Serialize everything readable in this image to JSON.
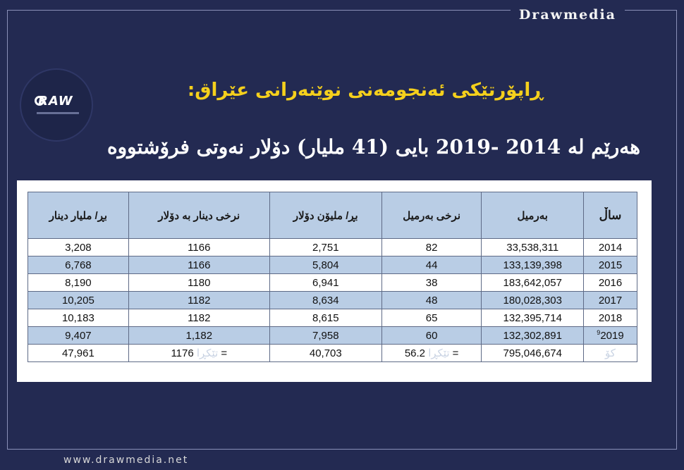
{
  "brand": {
    "top": "Drawmedia",
    "bottom": "www.drawmedia.net",
    "logo_text": "RAW"
  },
  "title": {
    "line1": "ڕاپۆرتێکی ئەنجومەنی نوێنەرانی عێراق:",
    "line2": "هەرێم لە 2014 -2019 بایی (41 ملیار) دۆلار نەوتی فرۆشتووە"
  },
  "table": {
    "headers": {
      "year": "ساڵ",
      "barrels": "بەرمیل",
      "barrel_price": "نرخی بەرمیل",
      "million_dollars": "بڕ/ ملیۆن دۆلار",
      "exchange_rate": "نرخی دینار بە دۆلار",
      "billion_dinars": "بڕ/ ملیار دینار"
    },
    "rows": [
      {
        "year": "2014",
        "sup": "",
        "barrels": "33,538,311",
        "barrel_price": "82",
        "million_dollars": "2,751",
        "exchange_rate": "1166",
        "billion_dinars": "3,208"
      },
      {
        "year": "2015",
        "sup": "",
        "barrels": "133,139,398",
        "barrel_price": "44",
        "million_dollars": "5,804",
        "exchange_rate": "1166",
        "billion_dinars": "6,768"
      },
      {
        "year": "2016",
        "sup": "",
        "barrels": "183,642,057",
        "barrel_price": "38",
        "million_dollars": "6,941",
        "exchange_rate": "1180",
        "billion_dinars": "8,190"
      },
      {
        "year": "2017",
        "sup": "",
        "barrels": "180,028,303",
        "barrel_price": "48",
        "million_dollars": "8,634",
        "exchange_rate": "1182",
        "billion_dinars": "10,205"
      },
      {
        "year": "2018",
        "sup": "",
        "barrels": "132,395,714",
        "barrel_price": "65",
        "million_dollars": "8,615",
        "exchange_rate": "1182",
        "billion_dinars": "10,183"
      },
      {
        "year": "2019",
        "sup": "9",
        "barrels": "132,302,891",
        "barrel_price": "60",
        "million_dollars": "7,958",
        "exchange_rate": "1,182",
        "billion_dinars": "9,407"
      }
    ],
    "total": {
      "label": "کۆ",
      "barrels": "795,046,674",
      "avg_label": "تێکڕا",
      "barrel_price": "56.2 =",
      "million_dollars": "40,703",
      "exchange_rate": "1176 =",
      "billion_dinars": "47,961"
    }
  }
}
